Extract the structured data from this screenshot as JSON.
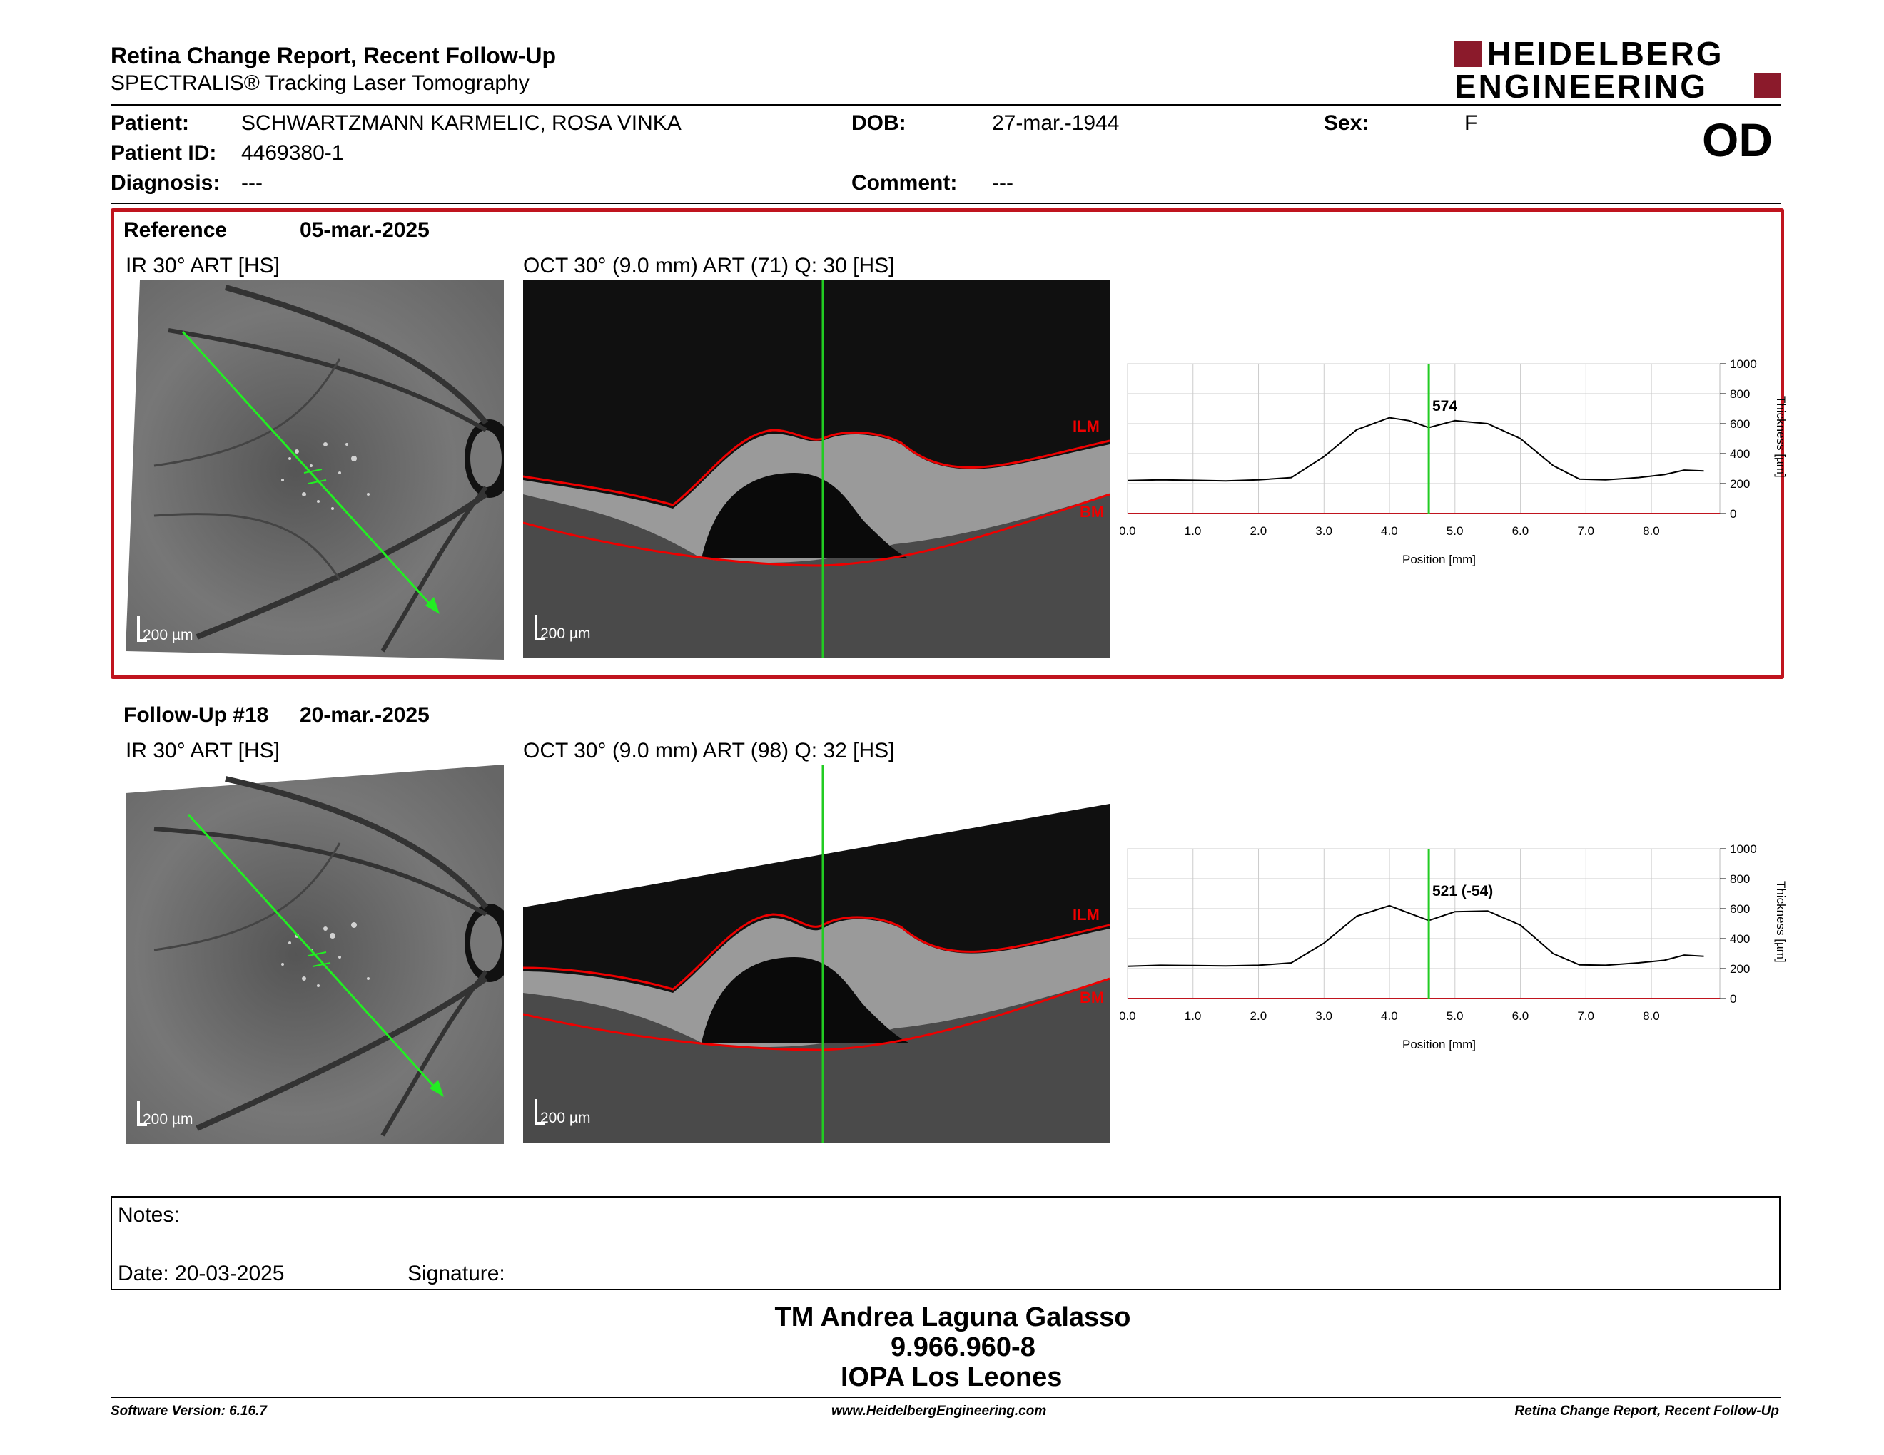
{
  "header": {
    "title": "Retina Change Report, Recent Follow-Up",
    "subtitle": "SPECTRALIS® Tracking Laser Tomography",
    "logo_line1": "HEIDELBERG",
    "logo_line2": "ENGINEERING",
    "eye": "OD"
  },
  "patient": {
    "patient_label": "Patient:",
    "patient_value": "SCHWARTZMANN KARMELIC, ROSA VINKA",
    "dob_label": "DOB:",
    "dob_value": "27-mar.-1944",
    "sex_label": "Sex:",
    "sex_value": "F",
    "id_label": "Patient ID:",
    "id_value": "4469380-1",
    "diagnosis_label": "Diagnosis:",
    "diagnosis_value": "---",
    "comment_label": "Comment:",
    "comment_value": "---"
  },
  "reference": {
    "label": "Reference",
    "date": "05-mar.-2025",
    "ir_title": "IR 30° ART [HS]",
    "oct_title": "OCT 30° (9.0 mm) ART (71) Q: 30 [HS]",
    "scale_ir": "200 µm",
    "scale_oct": "200 µm",
    "ilm": "ILM",
    "bm": "BM",
    "marker_value": "574"
  },
  "followup": {
    "label": "Follow-Up #18",
    "date": "20-mar.-2025",
    "ir_title": "IR 30° ART [HS]",
    "oct_title": "OCT 30° (9.0 mm) ART (98) Q: 32 [HS]",
    "scale_ir": "200 µm",
    "scale_oct": "200 µm",
    "ilm": "ILM",
    "bm": "BM",
    "marker_value": "521 (-54)"
  },
  "chart_data": [
    {
      "type": "line",
      "xlabel": "Position [mm]",
      "ylabel": "Thickness [µm]",
      "xlim": [
        0,
        9
      ],
      "ylim": [
        0,
        1000
      ],
      "x_ticks": [
        "0.0",
        "1.0",
        "2.0",
        "3.0",
        "4.0",
        "5.0",
        "6.0",
        "7.0",
        "8.0"
      ],
      "y_ticks": [
        "0",
        "200",
        "400",
        "600",
        "800",
        "1000"
      ],
      "grid": true,
      "marker_x": 4.6,
      "series": [
        {
          "x": [
            0,
            0.5,
            1,
            1.5,
            2,
            2.5,
            3,
            3.5,
            4,
            4.3,
            4.6,
            5,
            5.5,
            6,
            6.5,
            6.9,
            7.3,
            7.8,
            8.2,
            8.5,
            8.8
          ],
          "y": [
            220,
            225,
            222,
            218,
            225,
            240,
            380,
            560,
            640,
            620,
            574,
            620,
            600,
            500,
            320,
            230,
            225,
            240,
            260,
            290,
            285
          ]
        }
      ]
    },
    {
      "type": "line",
      "xlabel": "Position [mm]",
      "ylabel": "Thickness [µm]",
      "xlim": [
        0,
        9
      ],
      "ylim": [
        0,
        1000
      ],
      "x_ticks": [
        "0.0",
        "1.0",
        "2.0",
        "3.0",
        "4.0",
        "5.0",
        "6.0",
        "7.0",
        "8.0"
      ],
      "y_ticks": [
        "0",
        "200",
        "400",
        "600",
        "800",
        "1000"
      ],
      "grid": true,
      "marker_x": 4.6,
      "series": [
        {
          "x": [
            0,
            0.5,
            1,
            1.5,
            2,
            2.5,
            3,
            3.5,
            4,
            4.3,
            4.6,
            5,
            5.5,
            6,
            6.5,
            6.9,
            7.3,
            7.8,
            8.2,
            8.5,
            8.8
          ],
          "y": [
            215,
            222,
            220,
            218,
            222,
            238,
            370,
            550,
            620,
            570,
            521,
            580,
            585,
            490,
            300,
            225,
            222,
            238,
            255,
            290,
            282
          ]
        }
      ]
    }
  ],
  "notes": {
    "notes_label": "Notes:",
    "date_label": "Date: 20-03-2025",
    "signature_label": "Signature:"
  },
  "signature_block": {
    "name": "TM Andrea Laguna Galasso",
    "id": "9.966.960-8",
    "org": "IOPA Los Leones"
  },
  "footer": {
    "software": "Software Version: 6.16.7",
    "website": "www.HeidelbergEngineering.com",
    "report": "Retina Change Report, Recent Follow-Up"
  },
  "colors": {
    "frame": "#c0141e",
    "logo": "#8b1a2b",
    "marker": "#22cc22",
    "arrow": "#22ee22"
  }
}
